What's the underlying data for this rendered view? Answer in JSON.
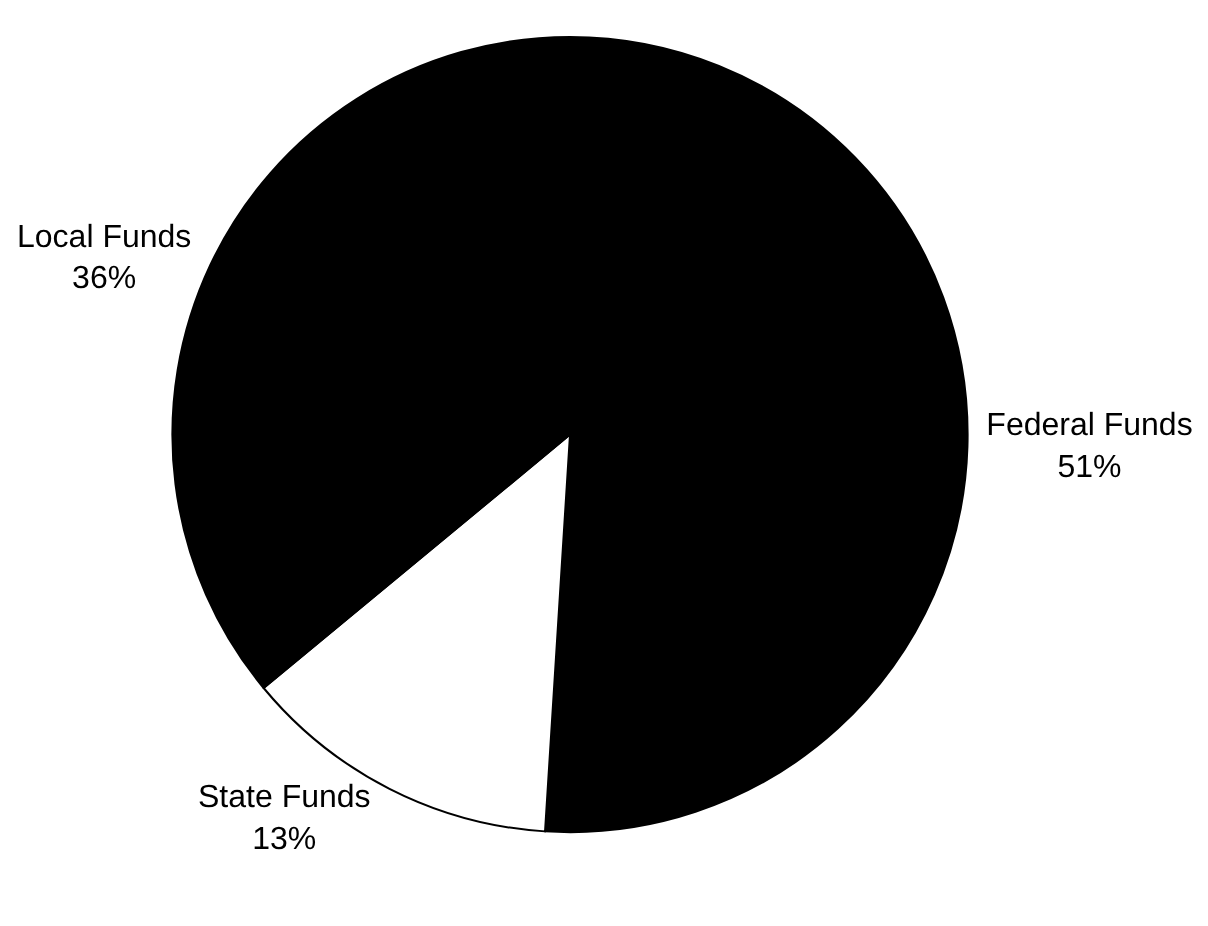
{
  "chart_data": {
    "type": "pie",
    "categories": [
      "Federal Funds",
      "State Funds",
      "Local Funds"
    ],
    "values": [
      51,
      13,
      36
    ],
    "value_labels": [
      "51%",
      "13%",
      "36%"
    ],
    "colors": [
      "#000000",
      "#ffffff",
      "#000000"
    ],
    "legend": false
  }
}
